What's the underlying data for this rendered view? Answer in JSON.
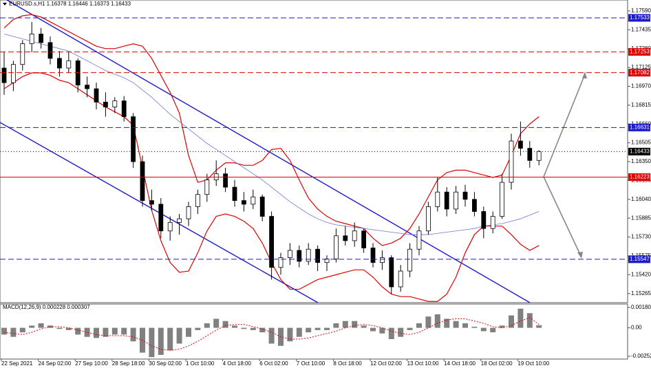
{
  "chart_data": [
    {
      "type": "candlestick",
      "title": "EURUSD.s,H1 1.16378 1.16446 1.16373 1.16433",
      "categories": [
        "22 Sep 2021",
        null,
        null,
        null,
        "24 Sep 02:00",
        null,
        null,
        null,
        "27 Sep 10:00",
        null,
        null,
        null,
        "28 Sep 18:00",
        null,
        null,
        null,
        "30 Sep 02:00",
        null,
        null,
        null,
        "1 Oct 10:00",
        null,
        null,
        null,
        "4 Oct 18:00",
        null,
        null,
        null,
        "6 Oct 02:00",
        null,
        null,
        null,
        "7 Oct 10:00",
        null,
        null,
        null,
        "8 Oct 18:00",
        null,
        null,
        null,
        "12 Oct 02:00",
        null,
        null,
        null,
        "13 Oct 10:00",
        null,
        null,
        null,
        "14 Oct 18:00",
        null,
        null,
        null,
        "18 Oct 02:00",
        null,
        null,
        null,
        "19 Oct 10:00",
        null,
        null
      ],
      "open": [
        1.1712,
        1.17,
        1.1715,
        1.1732,
        1.174,
        1.1733,
        1.172,
        1.1712,
        1.1718,
        1.1698,
        1.1695,
        1.1684,
        1.168,
        1.1685,
        1.1672,
        1.1635,
        1.1603,
        1.16,
        1.1578,
        1.1585,
        1.1588,
        1.1598,
        1.1608,
        1.162,
        1.1625,
        1.1614,
        1.1603,
        1.16,
        1.1606,
        1.159,
        1.1548,
        1.1556,
        1.1562,
        1.1553,
        1.1563,
        1.1552,
        1.1555,
        1.1574,
        1.157,
        1.1578,
        1.1564,
        1.1552,
        1.1556,
        1.1532,
        1.1545,
        1.1563,
        1.1578,
        1.1598,
        1.161,
        1.1596,
        1.161,
        1.1604,
        1.1594,
        1.158,
        1.159,
        1.1618,
        1.1652,
        1.1646,
        1.1636
      ],
      "high": [
        1.1725,
        1.1718,
        1.1735,
        1.175,
        1.1745,
        1.1738,
        1.1726,
        1.1725,
        1.172,
        1.1705,
        1.17,
        1.1692,
        1.1688,
        1.1689,
        1.1675,
        1.164,
        1.1612,
        1.1605,
        1.159,
        1.1592,
        1.1602,
        1.1612,
        1.1625,
        1.1636,
        1.163,
        1.162,
        1.161,
        1.1612,
        1.1608,
        1.1594,
        1.156,
        1.1568,
        1.1566,
        1.1568,
        1.1566,
        1.1558,
        1.158,
        1.1582,
        1.1585,
        1.158,
        1.1568,
        1.1562,
        1.1558,
        1.155,
        1.1568,
        1.1582,
        1.1602,
        1.1622,
        1.1614,
        1.1615,
        1.1616,
        1.161,
        1.1598,
        1.1594,
        1.1625,
        1.1658,
        1.1668,
        1.1652,
        1.16446
      ],
      "low": [
        1.169,
        1.1693,
        1.171,
        1.1725,
        1.1728,
        1.1715,
        1.1705,
        1.1708,
        1.1692,
        1.1688,
        1.1678,
        1.1672,
        1.1675,
        1.1668,
        1.163,
        1.1598,
        1.1595,
        1.1572,
        1.157,
        1.1575,
        1.1582,
        1.1592,
        1.1602,
        1.1615,
        1.161,
        1.1598,
        1.1594,
        1.1596,
        1.1586,
        1.1538,
        1.1542,
        1.155,
        1.1548,
        1.155,
        1.1545,
        1.1545,
        1.1552,
        1.1566,
        1.1565,
        1.156,
        1.1548,
        1.1546,
        1.1526,
        1.1528,
        1.154,
        1.1558,
        1.1575,
        1.1594,
        1.159,
        1.1592,
        1.1598,
        1.159,
        1.1572,
        1.1576,
        1.1588,
        1.1612,
        1.164,
        1.163,
        1.1632
      ],
      "close": [
        1.17,
        1.1715,
        1.1732,
        1.174,
        1.1733,
        1.172,
        1.1712,
        1.1718,
        1.1698,
        1.1695,
        1.1684,
        1.168,
        1.1685,
        1.1672,
        1.1635,
        1.1603,
        1.16,
        1.1578,
        1.1585,
        1.1588,
        1.1598,
        1.1608,
        1.162,
        1.1625,
        1.1614,
        1.1603,
        1.16,
        1.1606,
        1.159,
        1.1548,
        1.1556,
        1.1562,
        1.1553,
        1.1563,
        1.1552,
        1.1555,
        1.1574,
        1.157,
        1.1578,
        1.1564,
        1.1552,
        1.1556,
        1.1532,
        1.1545,
        1.1563,
        1.1578,
        1.1598,
        1.161,
        1.1596,
        1.161,
        1.1604,
        1.1594,
        1.158,
        1.159,
        1.1618,
        1.1652,
        1.1646,
        1.1636,
        1.16433
      ],
      "up_color": "#ffffff",
      "down_color": "#000000",
      "wick_color": "#000000",
      "overlays": [
        {
          "color": "#e00000",
          "values": [
            1.1745,
            1.1752,
            1.1755,
            1.1756,
            1.1754,
            1.175,
            1.1746,
            1.1742,
            1.1738,
            1.1734,
            1.173,
            1.1728,
            1.1728,
            1.173,
            1.1732,
            1.173,
            1.172,
            1.1706,
            1.1692,
            1.1675,
            1.164,
            1.1618,
            1.162,
            1.1628,
            1.1634,
            1.1634,
            1.1632,
            1.1632,
            1.1636,
            1.1645,
            1.1646,
            1.1636,
            1.162,
            1.1605,
            1.1596,
            1.159,
            1.1586,
            1.1584,
            1.1582,
            1.158,
            1.1572,
            1.1566,
            1.1568,
            1.1572,
            1.158,
            1.1592,
            1.1606,
            1.162,
            1.1626,
            1.1628,
            1.1628,
            1.1626,
            1.1624,
            1.1622,
            1.1624,
            1.164,
            1.1658,
            1.1666,
            1.1672
          ]
        },
        {
          "color": "#e00000",
          "values": [
            1.1695,
            1.17,
            1.1705,
            1.1708,
            1.1708,
            1.1706,
            1.1702,
            1.17,
            1.1695,
            1.169,
            1.1685,
            1.168,
            1.1676,
            1.1672,
            1.1665,
            1.163,
            1.1595,
            1.157,
            1.1552,
            1.1544,
            1.1545,
            1.156,
            1.1578,
            1.159,
            1.1592,
            1.159,
            1.1586,
            1.158,
            1.1568,
            1.1552,
            1.1538,
            1.153,
            1.153,
            1.1534,
            1.1538,
            1.154,
            1.1542,
            1.1544,
            1.1546,
            1.1546,
            1.154,
            1.1532,
            1.1526,
            1.1524,
            1.1524,
            1.1522,
            1.152,
            1.152,
            1.1526,
            1.154,
            1.156,
            1.1575,
            1.1582,
            1.1582,
            1.1582,
            1.1575,
            1.1567,
            1.1562,
            1.1566
          ]
        },
        {
          "color": "#6a78d8",
          "values": [
            1.174,
            1.1738,
            1.1736,
            1.1734,
            1.1732,
            1.173,
            1.1728,
            1.1726,
            1.1722,
            1.1718,
            1.1714,
            1.171,
            1.1707,
            1.1704,
            1.17,
            1.1694,
            1.1688,
            1.1681,
            1.1674,
            1.1668,
            1.1662,
            1.1656,
            1.165,
            1.1645,
            1.164,
            1.1635,
            1.163,
            1.1625,
            1.162,
            1.1614,
            1.1608,
            1.1602,
            1.1597,
            1.1592,
            1.1588,
            1.1585,
            1.1583,
            1.1582,
            1.1581,
            1.158,
            1.1579,
            1.1578,
            1.1577,
            1.1576,
            1.1575,
            1.1575,
            1.1575,
            1.1576,
            1.1577,
            1.1578,
            1.1579,
            1.158,
            1.1582,
            1.1583,
            1.1584,
            1.1586,
            1.1588,
            1.1591,
            1.1594
          ]
        }
      ],
      "levels": [
        {
          "value": 1.17533,
          "color": "#1a1acc",
          "dash": "8 4"
        },
        {
          "value": 1.17253,
          "color": "#e00000",
          "dash": "8 4"
        },
        {
          "value": 1.17082,
          "color": "#e00000",
          "dash": "8 4"
        },
        {
          "value": 1.16631,
          "color": "#1a1acc",
          "dash": "8 4"
        },
        {
          "value": 1.16433,
          "color": "#000000",
          "dash": "1 3"
        },
        {
          "value": 1.16223,
          "color": "#e00000",
          "dash": "none"
        },
        {
          "value": 1.15547,
          "color": "#1a1acc",
          "dash": "8 4"
        }
      ],
      "ylim": [
        1.1519,
        1.1768
      ],
      "yticks": [
        {
          "value": 1.1759,
          "label": "1.17590"
        },
        1.17435,
        {
          "value": 1.1728,
          "label": "1.17280"
        },
        1.17125,
        {
          "value": 1.1697,
          "label": "1.16970"
        },
        1.16815,
        {
          "value": 1.1666,
          "label": "1.16660"
        },
        1.16505,
        {
          "value": 1.1635,
          "label": "1.16350"
        },
        1.16195,
        {
          "value": 1.1604,
          "label": "1.16040"
        },
        1.15885,
        {
          "value": 1.1573,
          "label": "1.15730"
        },
        1.15575,
        {
          "value": 1.1542,
          "label": "1.15420"
        },
        1.15265
      ]
    },
    {
      "type": "macd",
      "title": "MACD(12,26,9) 0.000228 0.000307",
      "series": [
        {
          "color": "#808080",
          "values": [
            -0.0006,
            -0.0008,
            -0.0004,
            0.0002,
            0.0004,
            0.0002,
            -0.0001,
            -0.0002,
            -0.0006,
            -0.0008,
            -0.0009,
            -0.0008,
            -0.0006,
            -0.0006,
            -0.0012,
            -0.0022,
            -0.0026,
            -0.0024,
            -0.002,
            -0.0014,
            -0.0008,
            -0.0002,
            0.0004,
            0.0008,
            0.0006,
            0.0002,
            -0.0001,
            -0.0002,
            -0.0004,
            -0.0014,
            -0.0016,
            -0.0012,
            -0.0008,
            -0.0004,
            -0.0002,
            -0.0002,
            0.0004,
            0.0006,
            0.0006,
            0.0002,
            -0.0003,
            -0.0005,
            -0.001,
            -0.0008,
            -0.0002,
            0.0004,
            0.001,
            0.0012,
            0.0008,
            0.0006,
            0.0004,
            0.0001,
            -0.0003,
            -0.0004,
            0.0002,
            0.0011,
            0.0017,
            0.0013,
            0.000228
          ]
        },
        {
          "color": "#e00000",
          "values": [
            -0.0004,
            -0.0005,
            -0.0006,
            -0.0004,
            -0.0001,
            0.0001,
            0.0001,
            0,
            -0.0002,
            -0.0004,
            -0.0006,
            -0.0007,
            -0.0007,
            -0.0007,
            -0.0008,
            -0.0011,
            -0.0016,
            -0.0019,
            -0.002,
            -0.0019,
            -0.0016,
            -0.0012,
            -0.0007,
            -0.0002,
            0.0002,
            0.0003,
            0.0003,
            0.0001,
            -0.0001,
            -0.0004,
            -0.0008,
            -0.001,
            -0.001,
            -0.0009,
            -0.0007,
            -0.0005,
            -0.0003,
            0,
            0.0002,
            0.0003,
            0.0002,
            0,
            -0.0003,
            -0.0005,
            -0.0006,
            -0.0004,
            0,
            0.0004,
            0.0007,
            0.0008,
            0.0008,
            0.0006,
            0.0004,
            0.0001,
            0,
            0.0002,
            0.0006,
            0.0009,
            0.000307
          ]
        }
      ],
      "ylim": [
        -0.00277,
        0.00217
      ],
      "yticks": [
        0.001803,
        {
          "value": 0,
          "label": "0.00"
        },
        -0.002524
      ]
    }
  ]
}
